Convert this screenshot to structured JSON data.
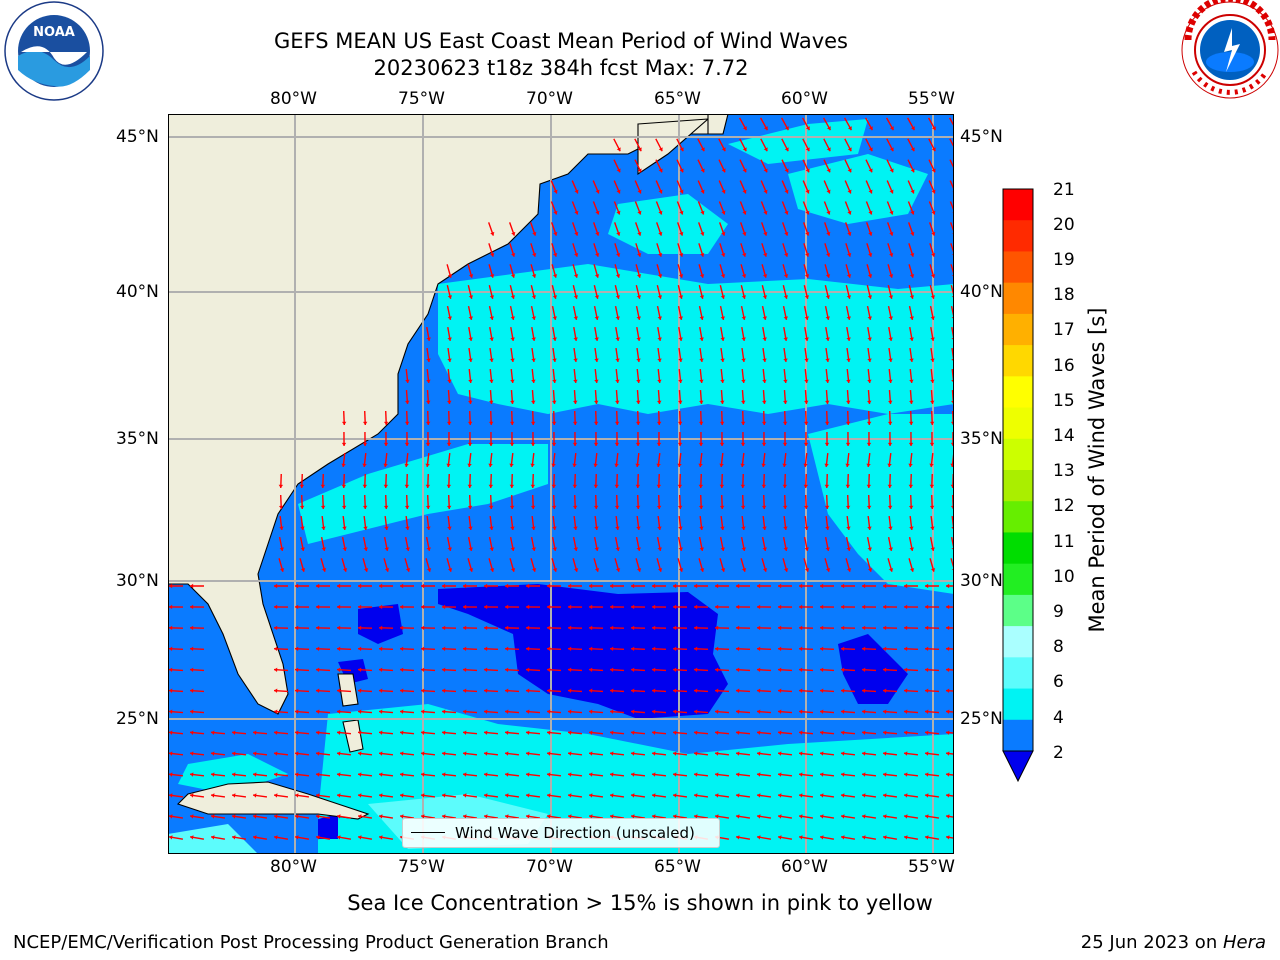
{
  "header": {
    "title_line1": "GEFS MEAN US East Coast Mean Period of Wind Waves",
    "title_line2": "20230623 t18z 384h fcst   Max: 7.72"
  },
  "logos": {
    "noaa": {
      "text": "NOAA",
      "ring_text": "NATIONAL OCEANIC AND ATMOSPHERIC ADMINISTRATION · U.S. DEPARTMENT OF COMMERCE ·"
    },
    "nws": {
      "ring_text": "NATIONAL WEATHER SERVICE"
    }
  },
  "map": {
    "lon_ticks": [
      "80°W",
      "75°W",
      "70°W",
      "65°W",
      "60°W",
      "55°W"
    ],
    "lat_ticks": [
      "45°N",
      "40°N",
      "35°N",
      "30°N",
      "25°N"
    ],
    "legend_label": "Wind Wave Direction (unscaled)",
    "colors": {
      "land": "#efeedc",
      "blue": "#0a7bff",
      "cyan": "#00f3f3",
      "light_cyan": "#5cfcfc",
      "deep_blue": "#0000ee",
      "arrow": "#ff0000",
      "grid": "#b0b0b0"
    }
  },
  "colorbar": {
    "label": "Mean Period of Wind Waves [s]",
    "ticks": [
      "21",
      "20",
      "19",
      "18",
      "17",
      "16",
      "15",
      "14",
      "13",
      "12",
      "11",
      "10",
      "9",
      "8",
      "6",
      "4",
      "2"
    ],
    "colors": [
      "#0000ee",
      "#0a7bff",
      "#00f3f3",
      "#5cfcfc",
      "#aaffff",
      "#5cff88",
      "#22ee22",
      "#00dd00",
      "#66ee00",
      "#aaee00",
      "#ccff00",
      "#eeff00",
      "#ffff00",
      "#ffd800",
      "#ffb000",
      "#ff8800",
      "#ff5500",
      "#ff2a00",
      "#ff0000"
    ]
  },
  "footer": {
    "note": "Sea Ice Concentration > 15% is shown in pink to yellow",
    "left": "NCEP/EMC/Verification Post Processing Product Generation Branch",
    "date": "25 Jun 2023 on ",
    "machine": "Hera"
  }
}
